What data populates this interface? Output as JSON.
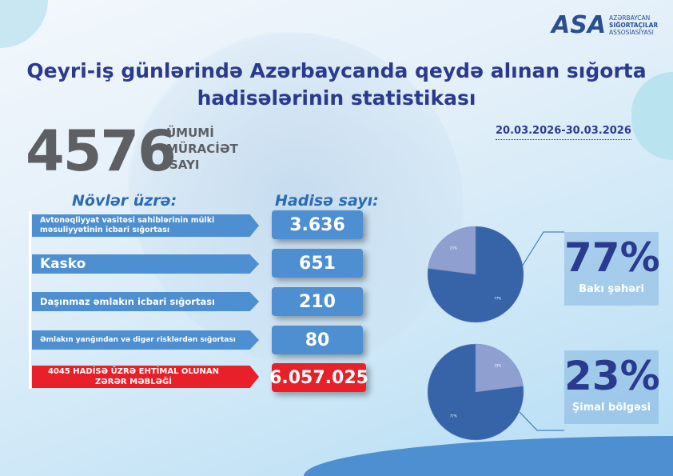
{
  "logo": {
    "abbr": "ASA",
    "line1": "AZƏRBAYCAN",
    "line2": "SIĞORTAÇILAR",
    "line3": "ASSOSİASİYASI"
  },
  "title": {
    "line1": "Qeyri-iş günlərində Azərbaycanda qeydə alınan sığorta",
    "line2": "hadisələrinin statistikası"
  },
  "total": {
    "value": "4576",
    "label1": "ÜMUMİ",
    "label2": "MÜRACİƏT",
    "label3": "SAYI"
  },
  "date_range": "20.03.2026-30.03.2026",
  "headers": {
    "types": "Növlər üzrə:",
    "count": "Hadisə sayı:"
  },
  "rows": [
    {
      "label1": "Avtonəqliyyat vasitəsi sahiblərinin mülki",
      "label2": "məsuliyyətinin icbari sığortası",
      "value": "3.636"
    },
    {
      "label": "Kasko",
      "value": "651"
    },
    {
      "label": "Daşınmaz əmlakın icbari sığortası",
      "value": "210"
    },
    {
      "label": "Əmlakın yanğından və digər risklərdən sığortası",
      "value": "80"
    }
  ],
  "damage": {
    "label1": "4045 HADİSƏ ÜZRƏ EHTİMAL OLUNAN",
    "label2": "ZƏRƏR MƏBLƏĞİ",
    "value": "6.057.025"
  },
  "chart_data": [
    {
      "type": "pie",
      "categories": [
        "77%",
        "23%"
      ],
      "values": [
        77,
        23
      ],
      "colors": [
        "#3763a8",
        "#8e9fd0"
      ]
    },
    {
      "type": "pie",
      "categories": [
        "77%",
        "23%"
      ],
      "values": [
        77,
        23
      ],
      "colors": [
        "#3763a8",
        "#8e9fd0"
      ]
    }
  ],
  "regions": [
    {
      "percent": "77%",
      "label": "Bakı şəhəri"
    },
    {
      "percent": "23%",
      "label": "Şimal bölgəsi"
    }
  ]
}
